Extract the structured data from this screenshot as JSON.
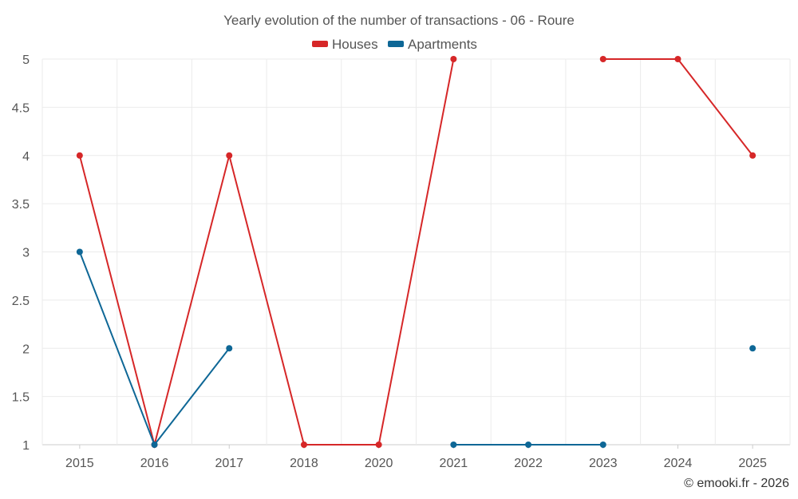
{
  "chart_data": {
    "type": "line",
    "title": "Yearly evolution of the number of transactions - 06 - Roure",
    "categories": [
      "2015",
      "2016",
      "2017",
      "2018",
      "2020",
      "2021",
      "2022",
      "2023",
      "2024",
      "2025"
    ],
    "series": [
      {
        "name": "Houses",
        "color": "#d62728",
        "values": [
          4,
          1,
          4,
          1,
          1,
          5,
          null,
          5,
          5,
          4
        ]
      },
      {
        "name": "Apartments",
        "color": "#0e6796",
        "values": [
          3,
          1,
          2,
          null,
          null,
          1,
          1,
          1,
          null,
          2
        ]
      }
    ],
    "ylim": [
      1,
      5
    ],
    "yticks": [
      "1",
      "1.5",
      "2",
      "2.5",
      "3",
      "3.5",
      "4",
      "4.5",
      "5"
    ],
    "ytick_values": [
      1,
      1.5,
      2,
      2.5,
      3,
      3.5,
      4,
      4.5,
      5
    ],
    "xlabel": "",
    "ylabel": "",
    "legend": "top-center",
    "grid": true,
    "credit": "© emooki.fr - 2026"
  }
}
